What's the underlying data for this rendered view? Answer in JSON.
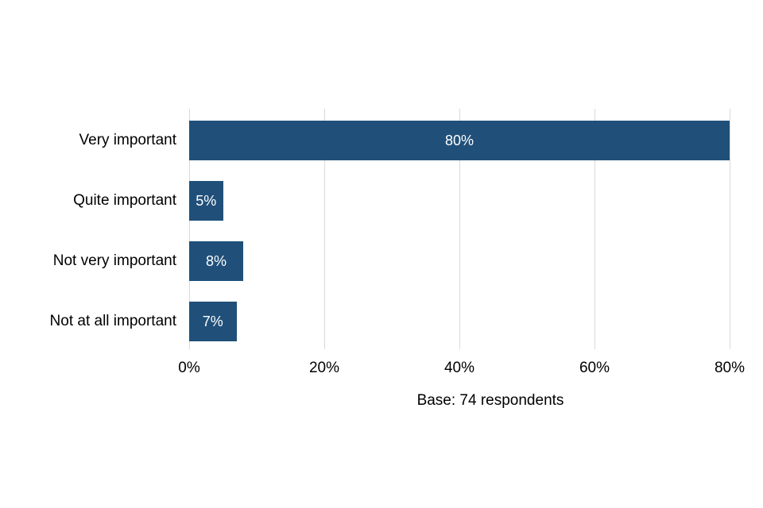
{
  "chart_data": {
    "type": "bar",
    "orientation": "horizontal",
    "title": "",
    "xlabel": "",
    "ylabel": "",
    "categories": [
      "Very important",
      "Quite important",
      "Not very important",
      "Not at all important"
    ],
    "values": [
      80,
      5,
      8,
      7
    ],
    "value_labels": [
      "80%",
      "5%",
      "8%",
      "7%"
    ],
    "x_ticks": [
      {
        "value": 0,
        "label": "0%"
      },
      {
        "value": 20,
        "label": "20%"
      },
      {
        "value": 40,
        "label": "40%"
      },
      {
        "value": 60,
        "label": "60%"
      },
      {
        "value": 80,
        "label": "80%"
      }
    ],
    "xlim": [
      0,
      80
    ],
    "grid": "vertical-only",
    "legend": "none",
    "note": "Base: 74 respondents",
    "colors": {
      "bar_fill": "#20507A",
      "value_label_text": "#FFFFFF",
      "gridline": "#D9D9D9",
      "axis_text": "#000000",
      "background": "#FFFFFF"
    }
  }
}
